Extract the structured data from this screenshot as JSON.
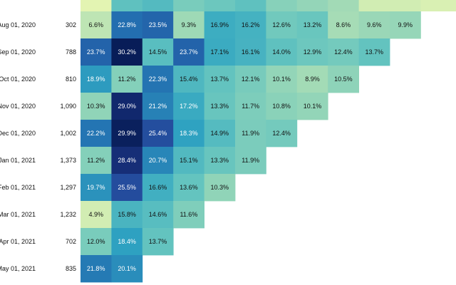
{
  "chart_data": {
    "type": "heatmap",
    "rows": [
      {
        "label": "Aug 01, 2020",
        "size": "302",
        "values": [
          6.6,
          22.8,
          23.5,
          9.3,
          16.9,
          16.2,
          12.6,
          13.2,
          8.6,
          9.6,
          9.9
        ]
      },
      {
        "label": "Sep 01, 2020",
        "size": "788",
        "values": [
          23.7,
          30.2,
          14.5,
          23.7,
          17.1,
          16.1,
          14.0,
          12.9,
          12.4,
          13.7
        ]
      },
      {
        "label": "Oct 01, 2020",
        "size": "810",
        "values": [
          18.9,
          11.2,
          22.3,
          15.4,
          13.7,
          12.1,
          10.1,
          8.9,
          10.5
        ]
      },
      {
        "label": "Nov 01, 2020",
        "size": "1,090",
        "values": [
          10.3,
          29.0,
          21.2,
          17.2,
          13.3,
          11.7,
          10.8,
          10.1
        ]
      },
      {
        "label": "Dec 01, 2020",
        "size": "1,002",
        "values": [
          22.2,
          29.9,
          25.4,
          18.3,
          14.9,
          11.9,
          12.4
        ]
      },
      {
        "label": "Jan 01, 2021",
        "size": "1,373",
        "values": [
          11.2,
          28.4,
          20.7,
          15.1,
          13.3,
          11.9
        ]
      },
      {
        "label": "Feb 01, 2021",
        "size": "1,297",
        "values": [
          19.7,
          25.5,
          16.6,
          13.6,
          10.3
        ]
      },
      {
        "label": "Mar 01, 2021",
        "size": "1,232",
        "values": [
          4.9,
          15.8,
          14.6,
          11.6
        ]
      },
      {
        "label": "Apr 01, 2021",
        "size": "702",
        "values": [
          12.0,
          18.4,
          13.7
        ]
      },
      {
        "label": "May 01, 2021",
        "size": "835",
        "values": [
          21.8,
          20.1
        ]
      }
    ],
    "partial_top_row_values": [
      2.0,
      14.0,
      15.0,
      12.0,
      13.0,
      14.0,
      11.0,
      10.0,
      9.0,
      5.0,
      5.0,
      4.0,
      4.0
    ],
    "value_format": "percent, one decimal",
    "color_scale": "YlGnBu",
    "value_range": [
      0,
      30.2
    ],
    "title": "",
    "xlabel": "",
    "ylabel": ""
  }
}
